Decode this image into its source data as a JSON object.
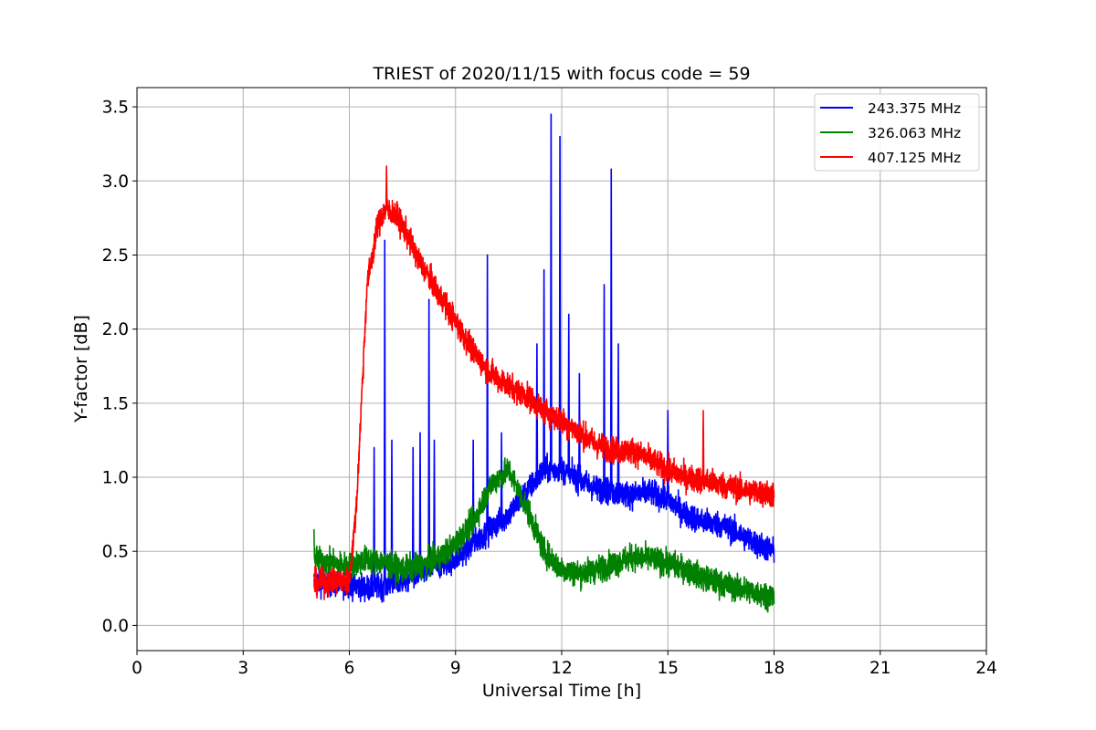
{
  "chart_data": {
    "type": "line",
    "title": "TRIEST of 2020/11/15 with focus code = 59",
    "xlabel": "Universal Time [h]",
    "ylabel": "Y-factor [dB]",
    "xlim": [
      0,
      24
    ],
    "ylim": [
      -0.17,
      3.63
    ],
    "xticks": [
      0,
      3,
      6,
      9,
      12,
      15,
      18,
      21,
      24
    ],
    "xtick_labels": [
      "0",
      "3",
      "6",
      "9",
      "12",
      "15",
      "18",
      "21",
      "24"
    ],
    "yticks": [
      0.0,
      0.5,
      1.0,
      1.5,
      2.0,
      2.5,
      3.0,
      3.5
    ],
    "ytick_labels": [
      "0.0",
      "0.5",
      "1.0",
      "1.5",
      "2.0",
      "2.5",
      "3.0",
      "3.5"
    ],
    "grid": true,
    "legend_position": "top-right",
    "series": [
      {
        "name": "243.375 MHz",
        "color": "#0000ff",
        "noise": 0.06,
        "x": [
          5.0,
          5.5,
          6.0,
          6.5,
          7.0,
          7.5,
          8.0,
          8.5,
          9.0,
          9.5,
          10.0,
          10.5,
          11.0,
          11.5,
          12.0,
          12.5,
          13.0,
          13.5,
          14.0,
          14.5,
          15.0,
          15.5,
          16.0,
          16.5,
          17.0,
          17.5,
          18.0
        ],
        "y": [
          0.3,
          0.28,
          0.28,
          0.25,
          0.27,
          0.3,
          0.35,
          0.4,
          0.45,
          0.55,
          0.65,
          0.75,
          0.9,
          1.05,
          1.05,
          0.98,
          0.92,
          0.9,
          0.88,
          0.9,
          0.85,
          0.75,
          0.7,
          0.68,
          0.62,
          0.55,
          0.5
        ],
        "spikes": [
          {
            "x": 6.7,
            "y": 1.2
          },
          {
            "x": 7.0,
            "y": 2.6
          },
          {
            "x": 7.2,
            "y": 1.25
          },
          {
            "x": 7.8,
            "y": 1.2
          },
          {
            "x": 8.0,
            "y": 1.3
          },
          {
            "x": 8.25,
            "y": 2.2
          },
          {
            "x": 8.4,
            "y": 1.25
          },
          {
            "x": 9.5,
            "y": 1.25
          },
          {
            "x": 9.9,
            "y": 2.5
          },
          {
            "x": 10.3,
            "y": 1.3
          },
          {
            "x": 11.3,
            "y": 1.9
          },
          {
            "x": 11.5,
            "y": 2.4
          },
          {
            "x": 11.7,
            "y": 3.45
          },
          {
            "x": 11.95,
            "y": 3.3
          },
          {
            "x": 12.2,
            "y": 2.1
          },
          {
            "x": 12.5,
            "y": 1.7
          },
          {
            "x": 13.2,
            "y": 2.3
          },
          {
            "x": 13.4,
            "y": 3.08
          },
          {
            "x": 13.6,
            "y": 1.9
          },
          {
            "x": 15.0,
            "y": 1.45
          }
        ]
      },
      {
        "name": "326.063 MHz",
        "color": "#008000",
        "noise": 0.06,
        "x": [
          5.0,
          5.5,
          6.0,
          6.5,
          7.0,
          7.5,
          8.0,
          8.5,
          9.0,
          9.5,
          10.0,
          10.5,
          11.0,
          11.5,
          12.0,
          12.5,
          13.0,
          13.5,
          14.0,
          14.5,
          15.0,
          15.5,
          16.0,
          16.5,
          17.0,
          17.5,
          18.0
        ],
        "y": [
          0.45,
          0.42,
          0.4,
          0.45,
          0.42,
          0.38,
          0.4,
          0.45,
          0.55,
          0.7,
          0.95,
          1.05,
          0.8,
          0.5,
          0.38,
          0.35,
          0.38,
          0.42,
          0.46,
          0.45,
          0.42,
          0.38,
          0.32,
          0.28,
          0.25,
          0.22,
          0.2
        ],
        "spikes": [
          {
            "x": 5.0,
            "y": 0.65
          }
        ]
      },
      {
        "name": "407.125 MHz",
        "color": "#ff0000",
        "noise": 0.06,
        "x": [
          5.0,
          5.5,
          6.0,
          6.2,
          6.5,
          6.8,
          7.0,
          7.3,
          7.6,
          8.0,
          8.5,
          9.0,
          9.5,
          10.0,
          10.5,
          11.0,
          11.5,
          12.0,
          12.5,
          13.0,
          13.5,
          14.0,
          14.5,
          15.0,
          15.5,
          16.0,
          16.5,
          17.0,
          17.5,
          18.0
        ],
        "y": [
          0.28,
          0.3,
          0.3,
          0.8,
          2.3,
          2.7,
          2.8,
          2.78,
          2.65,
          2.45,
          2.25,
          2.05,
          1.85,
          1.7,
          1.62,
          1.55,
          1.45,
          1.38,
          1.3,
          1.22,
          1.18,
          1.18,
          1.12,
          1.05,
          1.0,
          0.98,
          0.95,
          0.92,
          0.9,
          0.88
        ],
        "spikes": [
          {
            "x": 7.05,
            "y": 3.1
          },
          {
            "x": 16.0,
            "y": 1.45
          }
        ]
      }
    ]
  }
}
